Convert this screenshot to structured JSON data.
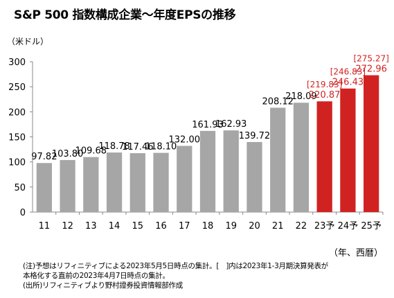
{
  "title": "S&P 500 指数構成企業～年度EPSの推移",
  "chart_data": {
    "type": "bar",
    "ylabel": "（米ドル）",
    "xlabel": "（年、西暦）",
    "ylim": [
      0,
      300
    ],
    "yticks": [
      0,
      50,
      100,
      150,
      200,
      250,
      300
    ],
    "grid": false,
    "categories": [
      "11",
      "12",
      "13",
      "14",
      "15",
      "16",
      "17",
      "18",
      "19",
      "20",
      "21",
      "22",
      "23予",
      "24予",
      "25予"
    ],
    "values": [
      97.82,
      103.8,
      109.68,
      118.78,
      117.46,
      118.1,
      132.0,
      161.93,
      162.93,
      139.72,
      208.12,
      218.09,
      220.87,
      246.43,
      272.96
    ],
    "value_labels": [
      "97.82",
      "103.80",
      "109.68",
      "118.78",
      "117.46",
      "118.10",
      "132.00",
      "161.93",
      "162.93",
      "139.72",
      "208.12",
      "218.09",
      "220.87",
      "246.43",
      "272.96"
    ],
    "forecast_flags": [
      false,
      false,
      false,
      false,
      false,
      false,
      false,
      false,
      false,
      false,
      false,
      false,
      true,
      true,
      true
    ],
    "prior_estimates": [
      null,
      null,
      null,
      null,
      null,
      null,
      null,
      null,
      null,
      null,
      null,
      null,
      "[219.83]",
      "[246.83]",
      "[275.27]"
    ],
    "colors": {
      "actual": "#a6a6a6",
      "forecast": "#d12222",
      "axis": "#888888",
      "text": "#000000"
    }
  },
  "notes": [
    "(注)予想はリフィニティブによる2023年5月5日時点の集計。[　]内は2023年1-3月期決算発表が",
    "本格化する直前の2023年4月7日時点の集計。",
    "(出所)リフィニティブより野村證券投資情報部作成"
  ]
}
